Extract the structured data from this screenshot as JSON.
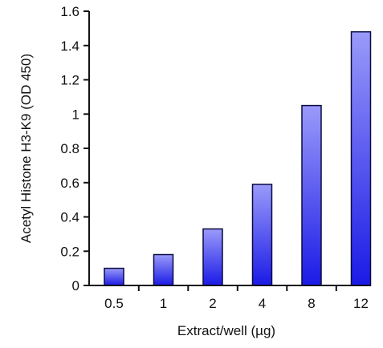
{
  "chart_data": {
    "type": "bar",
    "title": "",
    "xlabel": "Extract/well (µg)",
    "ylabel": "Acetyl Histone H3-K9 (OD 450)",
    "categories": [
      "0.5",
      "1",
      "2",
      "4",
      "8",
      "12"
    ],
    "values": [
      0.1,
      0.18,
      0.33,
      0.59,
      1.05,
      1.48
    ],
    "ylim": [
      0,
      1.6
    ],
    "yticks": [
      0,
      0.2,
      0.4,
      0.6,
      0.8,
      1,
      1.2,
      1.4,
      1.6
    ],
    "ytick_labels": [
      "0",
      "0.2",
      "0.4",
      "0.6",
      "0.8",
      "1",
      "1.2",
      "1.4",
      "1.6"
    ],
    "grid": false,
    "legend": "none",
    "colors": {
      "bar_dark": "#1a1ae6",
      "bar_light": "#9a9afa",
      "bar_stroke": "#0a0a40",
      "axis": "#111111"
    }
  }
}
